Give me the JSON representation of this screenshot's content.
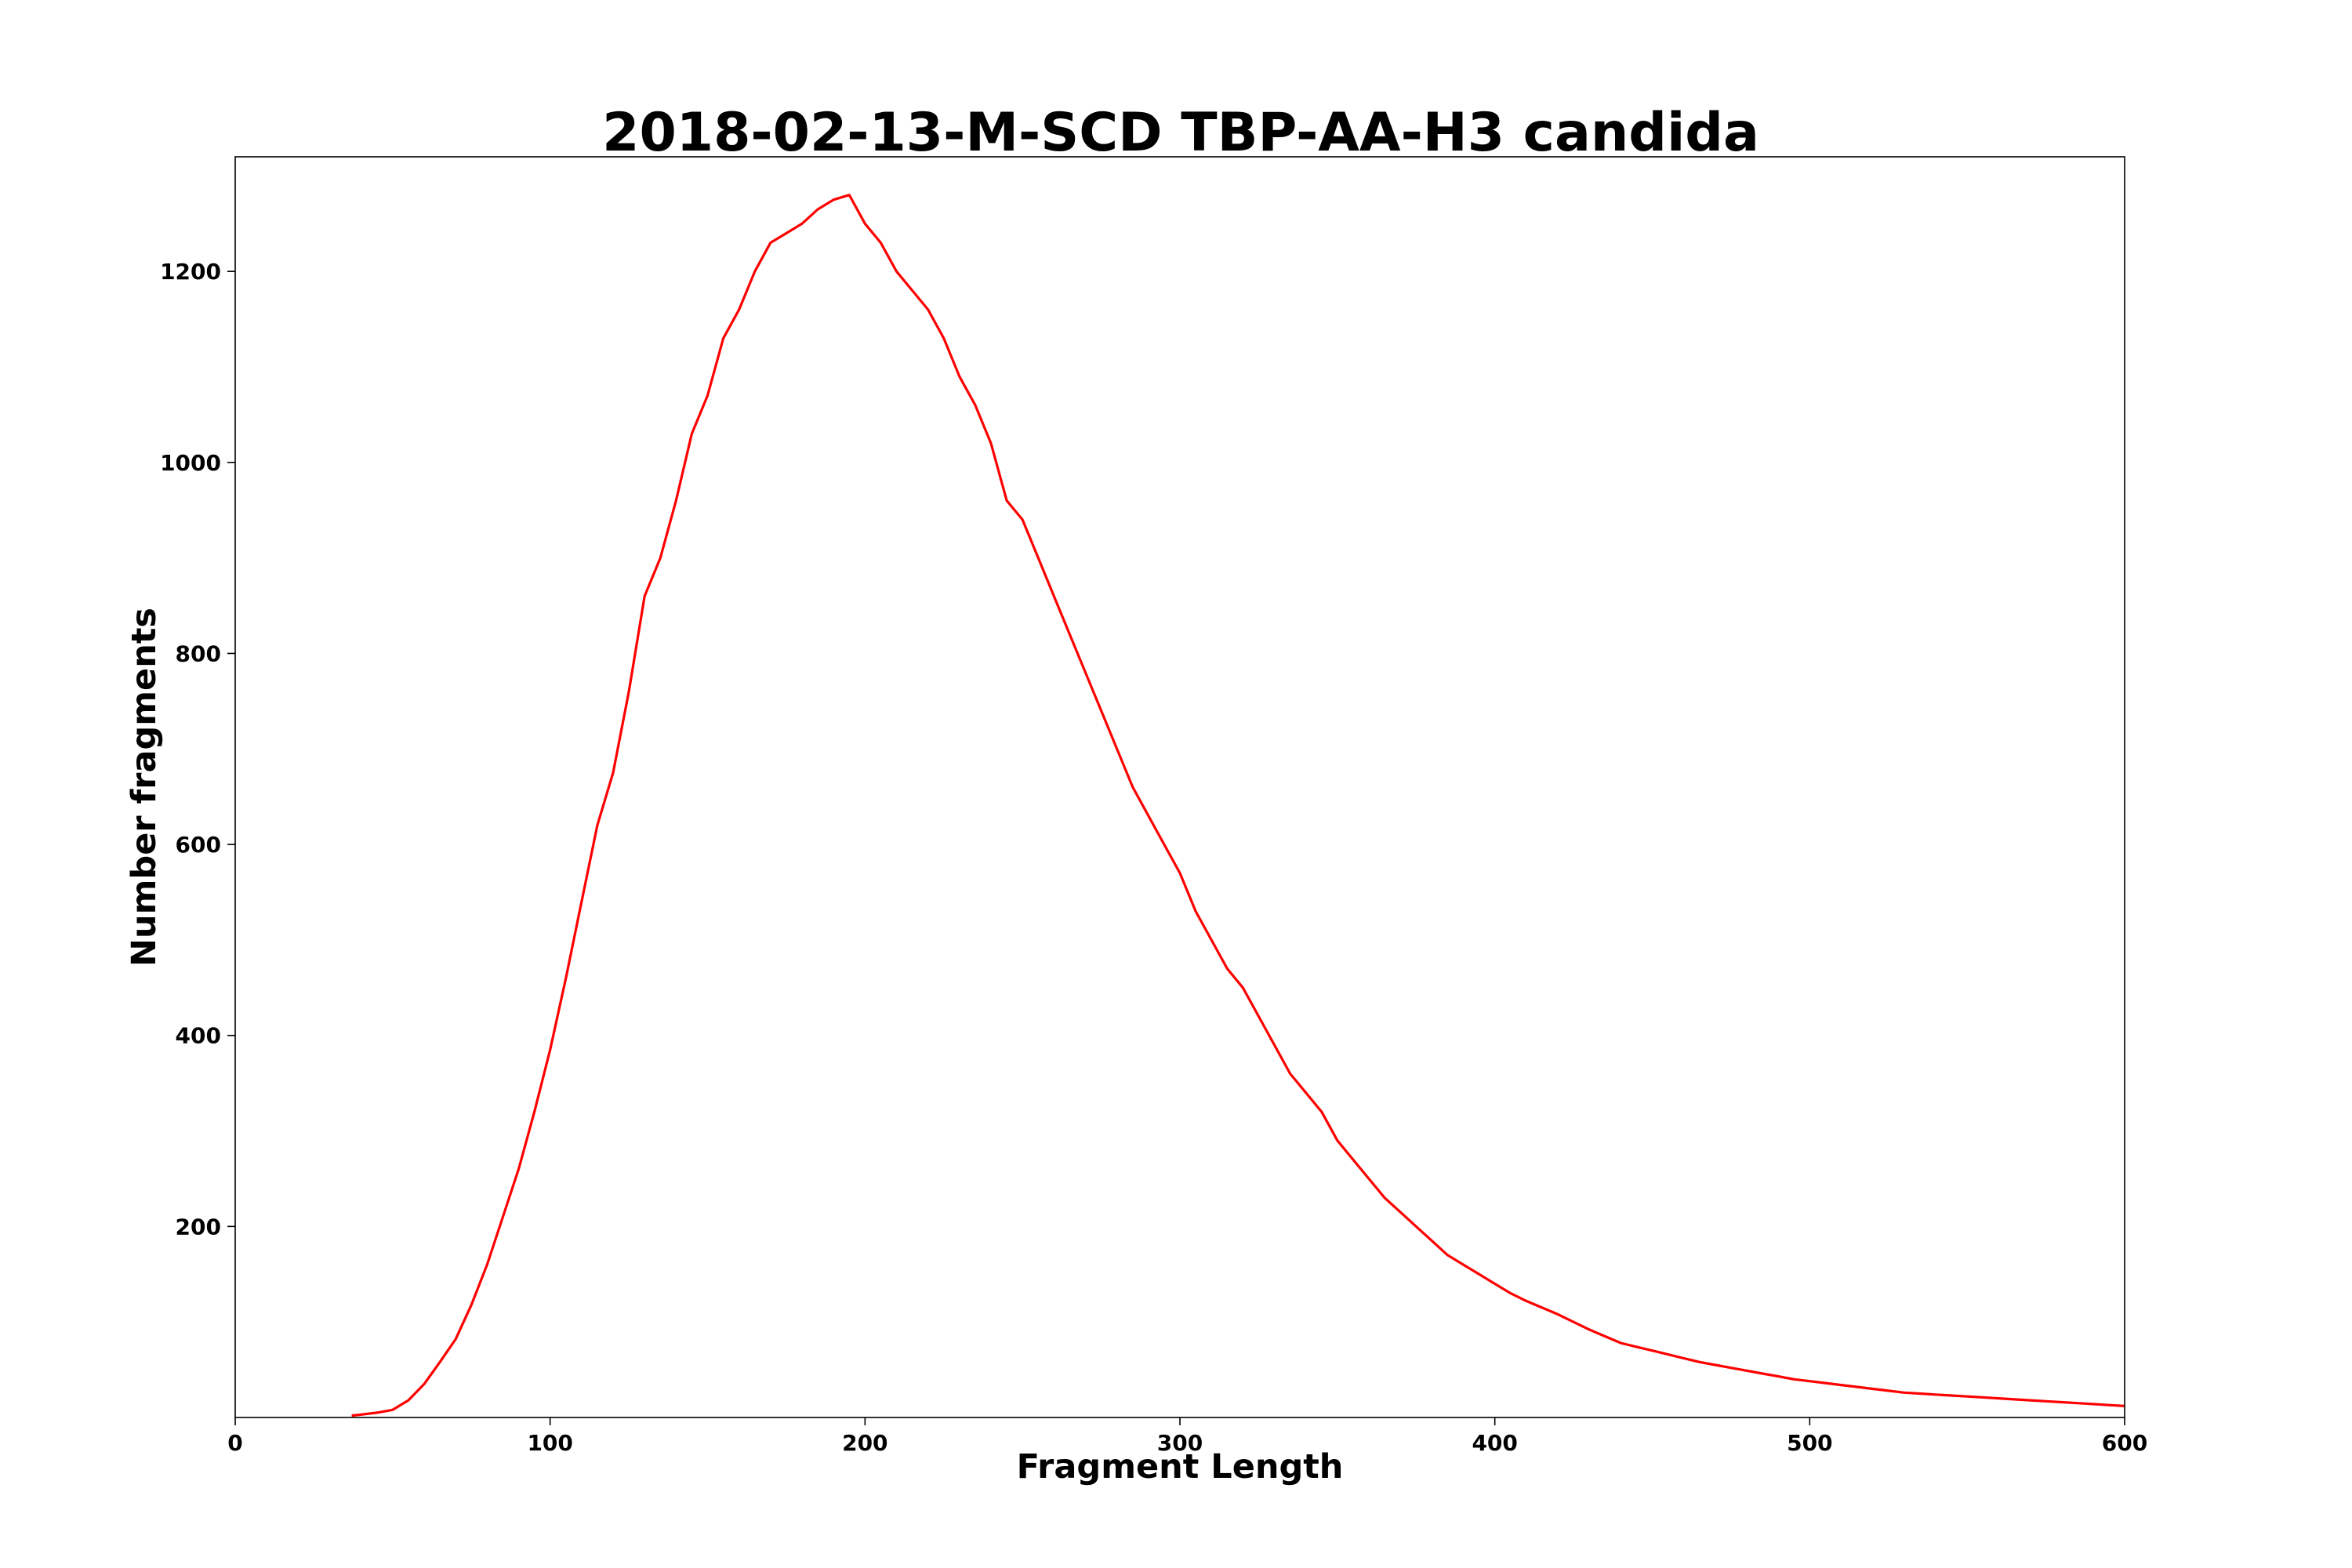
{
  "chart_data": {
    "type": "line",
    "title": "2018-02-13-M-SCD TBP-AA-H3 candida",
    "xlabel": "Fragment Length",
    "ylabel": "Number fragments",
    "xlim": [
      0,
      600
    ],
    "ylim": [
      0,
      1320
    ],
    "xticks": [
      0,
      100,
      200,
      300,
      400,
      500,
      600
    ],
    "yticks": [
      200,
      400,
      600,
      800,
      1000,
      1200
    ],
    "grid": false,
    "line_color": "#ff0000",
    "series": [
      {
        "x": [
          37,
          40,
          45,
          50,
          55,
          60,
          65,
          70,
          75,
          80,
          85,
          90,
          95,
          100,
          105,
          110,
          115,
          120,
          125,
          130,
          135,
          140,
          145,
          150,
          155,
          160,
          165,
          170,
          175,
          180,
          185,
          190,
          195,
          200,
          205,
          210,
          215,
          220,
          225,
          230,
          235,
          240,
          245,
          250,
          255,
          260,
          265,
          270,
          275,
          280,
          285,
          290,
          295,
          300,
          305,
          310,
          315,
          320,
          325,
          330,
          335,
          340,
          345,
          350,
          355,
          360,
          365,
          370,
          375,
          380,
          385,
          390,
          395,
          400,
          405,
          410,
          415,
          420,
          425,
          430,
          435,
          440,
          445,
          450,
          455,
          460,
          465,
          470,
          475,
          480,
          485,
          490,
          495,
          500,
          505,
          510,
          515,
          520,
          525,
          530,
          535,
          540,
          545,
          550,
          555,
          560,
          565,
          570,
          575,
          580,
          585,
          590,
          595,
          600
        ],
        "y": [
          2,
          3,
          5,
          8,
          18,
          35,
          58,
          82,
          118,
          160,
          210,
          260,
          320,
          385,
          460,
          540,
          620,
          675,
          760,
          860,
          900,
          960,
          1030,
          1070,
          1130,
          1160,
          1200,
          1230,
          1240,
          1250,
          1265,
          1275,
          1280,
          1250,
          1230,
          1200,
          1180,
          1160,
          1130,
          1090,
          1060,
          1020,
          960,
          940,
          900,
          860,
          820,
          780,
          740,
          700,
          660,
          630,
          600,
          570,
          530,
          500,
          470,
          450,
          420,
          390,
          360,
          340,
          320,
          290,
          270,
          250,
          230,
          215,
          200,
          185,
          170,
          160,
          150,
          140,
          130,
          122,
          115,
          108,
          100,
          92,
          85,
          78,
          74,
          70,
          66,
          62,
          58,
          55,
          52,
          49,
          46,
          43,
          40,
          38,
          36,
          34,
          32,
          30,
          28,
          26,
          25,
          24,
          23,
          22,
          21,
          20,
          19,
          18,
          17,
          16,
          15,
          14,
          13,
          12
        ]
      }
    ]
  }
}
